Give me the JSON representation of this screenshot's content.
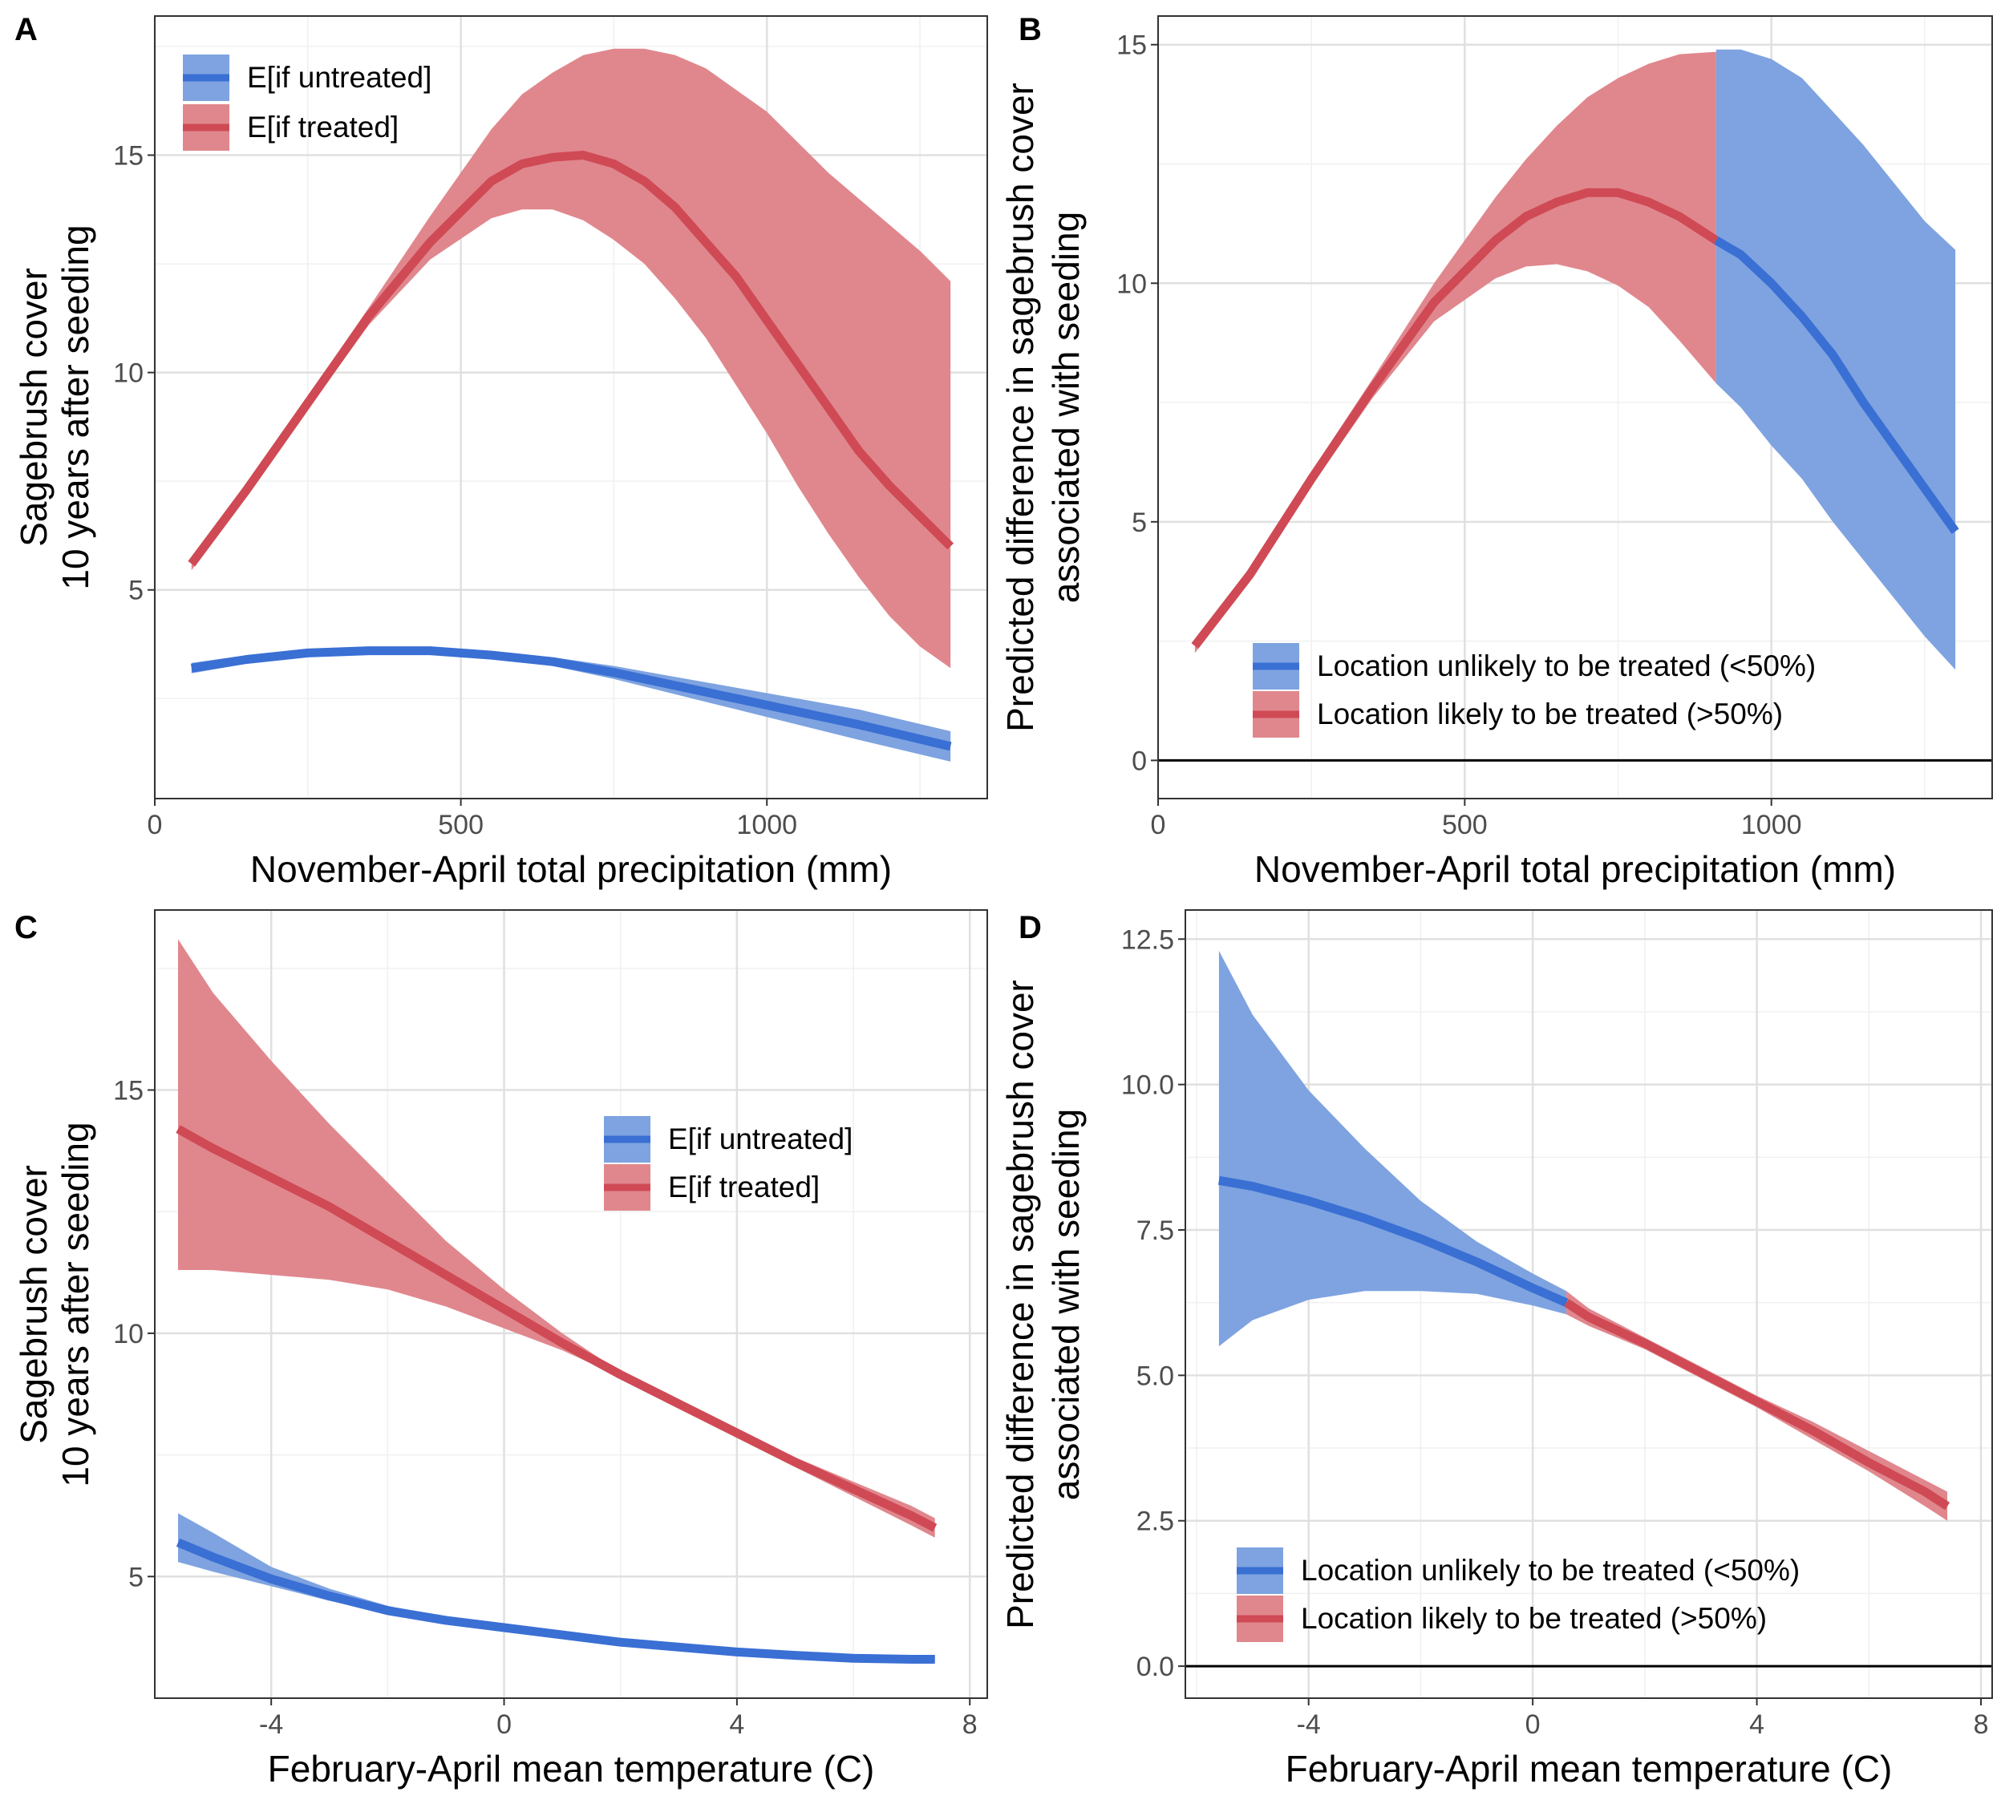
{
  "colors": {
    "blue_band": "#7ea3e0",
    "blue_line": "#3a6fd4",
    "red_band": "#e0878d",
    "red_line": "#cf4a55"
  },
  "chart_data": [
    {
      "panel": "A",
      "type": "line",
      "xlabel": "November-April total precipitation (mm)",
      "ylabel_line1": "Sagebrush cover",
      "ylabel_line2": "10 years after seeding",
      "xlim": [
        0,
        1360
      ],
      "ylim": [
        0.2,
        18.2
      ],
      "xticks": [
        0,
        500,
        1000
      ],
      "yticks": [
        5,
        10,
        15
      ],
      "xtick_labels": [
        "0",
        "500",
        "1000"
      ],
      "ytick_labels": [
        "5",
        "10",
        "15"
      ],
      "legend": {
        "position": "top-left",
        "entries": [
          "E[if untreated]",
          "E[if treated]"
        ]
      },
      "series": [
        {
          "name": "E[if untreated]",
          "color": "blue",
          "x": [
            60,
            150,
            250,
            350,
            450,
            550,
            650,
            750,
            850,
            950,
            1050,
            1150,
            1300
          ],
          "y": [
            3.2,
            3.4,
            3.55,
            3.6,
            3.6,
            3.5,
            3.35,
            3.1,
            2.8,
            2.5,
            2.2,
            1.9,
            1.4
          ],
          "lower": [
            3.08,
            3.3,
            3.47,
            3.53,
            3.53,
            3.43,
            3.25,
            2.95,
            2.6,
            2.25,
            1.9,
            1.55,
            1.05
          ],
          "upper": [
            3.32,
            3.5,
            3.63,
            3.67,
            3.67,
            3.58,
            3.45,
            3.25,
            3.0,
            2.75,
            2.5,
            2.25,
            1.75
          ]
        },
        {
          "name": "E[if treated]",
          "color": "red",
          "x": [
            60,
            150,
            250,
            350,
            450,
            550,
            600,
            650,
            700,
            750,
            800,
            850,
            900,
            950,
            1000,
            1050,
            1100,
            1150,
            1200,
            1250,
            1300
          ],
          "y": [
            5.6,
            7.3,
            9.3,
            11.3,
            13.0,
            14.4,
            14.8,
            14.95,
            15.0,
            14.8,
            14.4,
            13.8,
            13.0,
            12.2,
            11.2,
            10.2,
            9.2,
            8.2,
            7.4,
            6.7,
            6.0
          ],
          "lower": [
            5.45,
            7.15,
            9.15,
            11.1,
            12.6,
            13.55,
            13.75,
            13.75,
            13.5,
            13.05,
            12.5,
            11.7,
            10.8,
            9.7,
            8.6,
            7.4,
            6.3,
            5.3,
            4.4,
            3.7,
            3.2
          ],
          "upper": [
            5.75,
            7.45,
            9.45,
            11.5,
            13.6,
            15.6,
            16.4,
            16.9,
            17.3,
            17.45,
            17.45,
            17.3,
            17.0,
            16.5,
            16.0,
            15.3,
            14.6,
            14.0,
            13.4,
            12.8,
            12.1
          ]
        }
      ]
    },
    {
      "panel": "B",
      "type": "line",
      "xlabel": "November-April total precipitation (mm)",
      "ylabel_line1": "Predicted difference in sagebrush cover",
      "ylabel_line2": "associated with seeding",
      "xlim": [
        0,
        1360
      ],
      "ylim": [
        -0.8,
        15.6
      ],
      "xticks": [
        0,
        500,
        1000
      ],
      "yticks": [
        0,
        5,
        10,
        15
      ],
      "xtick_labels": [
        "0",
        "500",
        "1000"
      ],
      "ytick_labels": [
        "0",
        "5",
        "10",
        "15"
      ],
      "hline": 0,
      "legend": {
        "position": "bottom-left",
        "entries": [
          "Location unlikely to be treated (<50%)",
          "Location likely to be treated (>50%)"
        ]
      },
      "series": [
        {
          "name": "Location likely to be treated (>50%)",
          "color": "red",
          "x": [
            60,
            150,
            250,
            350,
            450,
            550,
            600,
            650,
            700,
            750,
            800,
            850,
            910
          ],
          "y": [
            2.4,
            3.9,
            5.9,
            7.8,
            9.6,
            10.9,
            11.4,
            11.7,
            11.9,
            11.9,
            11.7,
            11.4,
            10.9
          ],
          "lower": [
            2.25,
            3.75,
            5.75,
            7.6,
            9.2,
            10.1,
            10.35,
            10.4,
            10.25,
            9.95,
            9.5,
            8.8,
            7.9
          ],
          "upper": [
            2.55,
            4.05,
            6.05,
            8.0,
            10.0,
            11.8,
            12.6,
            13.3,
            13.9,
            14.3,
            14.6,
            14.8,
            14.85
          ]
        },
        {
          "name": "Location unlikely to be treated (<50%)",
          "color": "blue",
          "x": [
            910,
            950,
            1000,
            1050,
            1100,
            1150,
            1200,
            1250,
            1300
          ],
          "y": [
            10.9,
            10.6,
            10.0,
            9.3,
            8.5,
            7.5,
            6.6,
            5.7,
            4.8
          ],
          "lower": [
            7.9,
            7.4,
            6.6,
            5.9,
            5.0,
            4.2,
            3.4,
            2.6,
            1.9
          ],
          "upper": [
            14.9,
            14.9,
            14.7,
            14.3,
            13.6,
            12.9,
            12.1,
            11.3,
            10.7
          ]
        }
      ]
    },
    {
      "panel": "C",
      "type": "line",
      "xlabel": "February-April mean temperature (C)",
      "ylabel_line1": "Sagebrush cover",
      "ylabel_line2": "10 years after seeding",
      "xlim": [
        -6.0,
        8.3
      ],
      "ylim": [
        2.5,
        18.7
      ],
      "xticks": [
        -4,
        0,
        4,
        8
      ],
      "yticks": [
        5,
        10,
        15
      ],
      "xtick_labels": [
        "-4",
        "0",
        "4",
        "8"
      ],
      "ytick_labels": [
        "5",
        "10",
        "15"
      ],
      "legend": {
        "position": "center-right",
        "entries": [
          "E[if untreated]",
          "E[if treated]"
        ]
      },
      "series": [
        {
          "name": "E[if untreated]",
          "color": "blue",
          "x": [
            -5.6,
            -5,
            -4,
            -3,
            -2,
            -1,
            0,
            1,
            2,
            3,
            4,
            5,
            6,
            7,
            7.4
          ],
          "y": [
            5.7,
            5.4,
            4.95,
            4.6,
            4.3,
            4.1,
            3.95,
            3.8,
            3.65,
            3.55,
            3.45,
            3.38,
            3.32,
            3.3,
            3.3
          ],
          "lower": [
            5.3,
            5.1,
            4.8,
            4.5,
            4.25,
            4.05,
            3.9,
            3.75,
            3.6,
            3.5,
            3.4,
            3.32,
            3.26,
            3.24,
            3.24
          ],
          "upper": [
            6.3,
            5.9,
            5.2,
            4.75,
            4.4,
            4.15,
            4.0,
            3.85,
            3.7,
            3.6,
            3.5,
            3.44,
            3.38,
            3.36,
            3.36
          ]
        },
        {
          "name": "E[if treated]",
          "color": "red",
          "x": [
            -5.6,
            -5,
            -4,
            -3,
            -2,
            -1,
            0,
            1,
            2,
            3,
            4,
            5,
            6,
            7,
            7.4
          ],
          "y": [
            14.2,
            13.8,
            13.2,
            12.6,
            11.9,
            11.2,
            10.5,
            9.8,
            9.15,
            8.55,
            7.95,
            7.35,
            6.8,
            6.25,
            6.0
          ],
          "lower": [
            11.3,
            11.3,
            11.2,
            11.1,
            10.9,
            10.55,
            10.1,
            9.65,
            9.1,
            8.5,
            7.9,
            7.25,
            6.65,
            6.05,
            5.8
          ],
          "upper": [
            18.1,
            17.0,
            15.6,
            14.3,
            13.1,
            11.9,
            10.9,
            10.0,
            9.2,
            8.6,
            8.0,
            7.45,
            6.95,
            6.45,
            6.2
          ]
        }
      ]
    },
    {
      "panel": "D",
      "type": "line",
      "xlabel": "February-April mean temperature (C)",
      "ylabel_line1": "Predicted difference in sagebrush cover",
      "ylabel_line2": "associated with seeding",
      "xlim": [
        -6.2,
        8.2
      ],
      "ylim": [
        -0.55,
        13.0
      ],
      "xticks": [
        -4,
        0,
        4,
        8
      ],
      "yticks": [
        0,
        2.5,
        5,
        7.5,
        10,
        12.5
      ],
      "xtick_labels": [
        "-4",
        "0",
        "4",
        "8"
      ],
      "ytick_labels": [
        "0.0",
        "2.5",
        "5.0",
        "7.5",
        "10.0",
        "12.5"
      ],
      "hline": 0,
      "legend": {
        "position": "bottom-left",
        "entries": [
          "Location unlikely to be treated (<50%)",
          "Location likely to be treated (>50%)"
        ]
      },
      "series": [
        {
          "name": "Location unlikely to be treated (<50%)",
          "color": "blue",
          "x": [
            -5.6,
            -5,
            -4,
            -3,
            -2,
            -1,
            0,
            0.6
          ],
          "y": [
            8.35,
            8.25,
            8.0,
            7.7,
            7.35,
            6.95,
            6.5,
            6.25
          ],
          "lower": [
            5.5,
            5.95,
            6.3,
            6.45,
            6.45,
            6.4,
            6.2,
            6.05
          ],
          "upper": [
            12.3,
            11.2,
            9.9,
            8.9,
            8.0,
            7.3,
            6.75,
            6.45
          ]
        },
        {
          "name": "Location likely to be treated (>50%)",
          "color": "red",
          "x": [
            0.6,
            1,
            2,
            3,
            4,
            5,
            6,
            7,
            7.4
          ],
          "y": [
            6.25,
            6.0,
            5.55,
            5.05,
            4.55,
            4.05,
            3.5,
            3.0,
            2.75
          ],
          "lower": [
            6.05,
            5.85,
            5.45,
            4.95,
            4.45,
            3.9,
            3.35,
            2.75,
            2.5
          ],
          "upper": [
            6.45,
            6.15,
            5.65,
            5.15,
            4.65,
            4.2,
            3.7,
            3.2,
            3.0
          ]
        }
      ]
    }
  ]
}
